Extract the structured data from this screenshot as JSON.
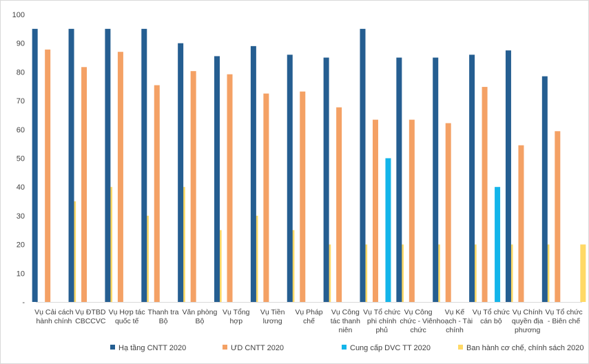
{
  "chart_data": {
    "type": "bar",
    "ylim": [
      0,
      100
    ],
    "yticks": [
      "-",
      "10",
      "20",
      "30",
      "40",
      "50",
      "60",
      "70",
      "80",
      "90",
      "100"
    ],
    "grid": false,
    "legend_position": "bottom",
    "categories": [
      [
        "Vụ Cải cách",
        "hành chính"
      ],
      [
        "Vụ ĐTBD",
        "CBCCVC"
      ],
      [
        "Vụ Hợp tác",
        "quốc tế"
      ],
      [
        "Thanh tra",
        "Bộ"
      ],
      [
        "Văn phòng",
        "Bộ"
      ],
      [
        "Vụ Tổng",
        "hợp"
      ],
      [
        "Vụ Tiền",
        "lương"
      ],
      [
        "Vụ Pháp",
        "chế"
      ],
      [
        "Vụ Công",
        "tác thanh",
        "niên"
      ],
      [
        "Vụ Tổ chức",
        "phi chính",
        "phủ"
      ],
      [
        "Vụ Công",
        "chức - Viên",
        "chức"
      ],
      [
        "Vụ Kế",
        "hoạch - Tài",
        "chính"
      ],
      [
        "Vụ Tổ chức",
        "cán bộ"
      ],
      [
        "Vụ Chính",
        "quyền địa",
        "phương"
      ],
      [
        "Vụ Tổ chức",
        "- Biên chế"
      ]
    ],
    "series": [
      {
        "name": "Hạ tầng CNTT 2020",
        "color": "#255e91",
        "values": [
          95,
          95,
          95,
          95,
          90,
          85.5,
          89,
          86,
          85,
          95,
          85,
          85,
          86,
          87.5,
          78.5
        ]
      },
      {
        "name": "ƯD CNTT 2020",
        "color": "#f4a165",
        "values": [
          87.8,
          81.7,
          87,
          75.4,
          80.3,
          79.2,
          72.5,
          73.2,
          67.7,
          63.4,
          63.4,
          62.2,
          74.8,
          54.5,
          59.4
        ]
      },
      {
        "name": "Cung cấp DVC TT 2020",
        "color": "#13b5ea",
        "values": [
          0,
          0,
          0,
          0,
          0,
          0,
          0,
          0,
          0,
          50,
          0,
          0,
          40,
          0,
          0
        ]
      },
      {
        "name": "Ban hành cơ chế, chính sách 2020",
        "color": "#ffd966",
        "values": [
          35,
          40,
          30,
          40,
          25,
          30,
          25,
          20,
          20,
          20,
          20,
          20,
          20,
          20,
          20
        ]
      }
    ]
  }
}
